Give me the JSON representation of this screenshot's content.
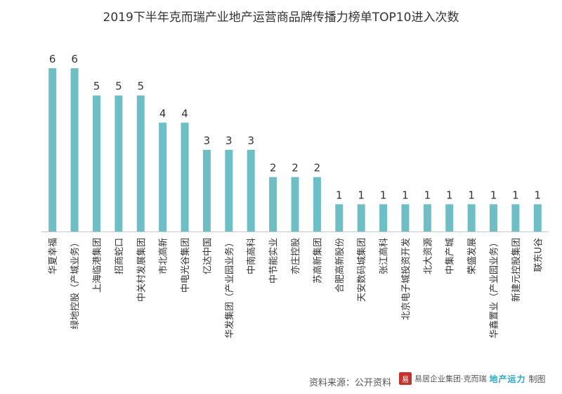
{
  "title": "2019下半年克而瑞产业地产运营商品牌传播力榜单TOP10进入次数",
  "footer": {
    "source": "资料来源：公开资料",
    "brand_text": "易居企业集团·克而瑞",
    "credit_mark": "地产运力",
    "credit_suffix": "制图"
  },
  "colors": {
    "bar": "#6cc0c5",
    "axis": "#c8c8c8",
    "text": "#333333"
  },
  "chart_data": {
    "type": "bar",
    "title": "2019下半年克而瑞产业地产运营商品牌传播力榜单TOP10进入次数",
    "xlabel": "",
    "ylabel": "",
    "ylim": [
      0,
      6
    ],
    "grid": false,
    "categories": [
      "华夏幸福",
      "绿地控股（产城业务）",
      "上海临港集团",
      "招商蛇口",
      "中关村发展集团",
      "市北高新",
      "中电光谷集团",
      "亿达中国",
      "华发集团（产业园业务）",
      "中南高科",
      "中节能实业",
      "亦庄控股",
      "苏高新集团",
      "合肥高新股份",
      "天安数码城集团",
      "张江高科",
      "北京电子城投资开发",
      "北大资源",
      "中集产城",
      "荣盛发展",
      "华鑫置业（产业园业务）",
      "新建元控股集团",
      "联东U谷"
    ],
    "values": [
      6,
      6,
      5,
      5,
      5,
      4,
      4,
      3,
      3,
      3,
      2,
      2,
      2,
      1,
      1,
      1,
      1,
      1,
      1,
      1,
      1,
      1,
      1
    ]
  }
}
